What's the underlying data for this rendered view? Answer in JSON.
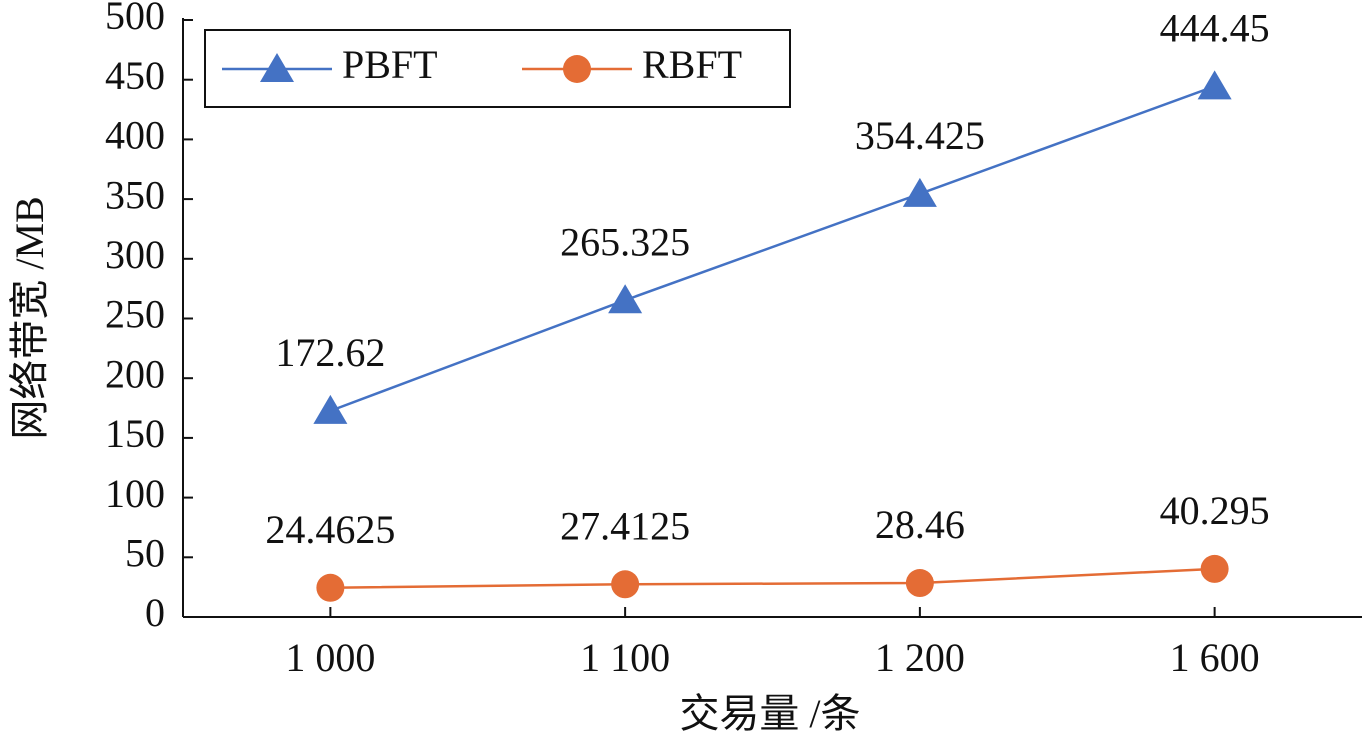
{
  "chart_data": {
    "type": "line",
    "xlabel": "交易量 /条",
    "ylabel": "网络带宽 /MB",
    "categories": [
      "1 000",
      "1 100",
      "1 200",
      "1 600"
    ],
    "series": [
      {
        "name": "PBFT",
        "color": "#4472c4",
        "marker": "triangle",
        "values": [
          172.62,
          265.325,
          354.425,
          444.45
        ]
      },
      {
        "name": "RBFT",
        "color": "#e46c35",
        "marker": "circle",
        "values": [
          24.4625,
          27.4125,
          28.46,
          40.295
        ]
      }
    ],
    "ylim": [
      0,
      500
    ],
    "yticks": [
      0,
      50,
      100,
      150,
      200,
      250,
      300,
      350,
      400,
      450,
      500
    ],
    "legend": "upper left",
    "grid": false
  }
}
